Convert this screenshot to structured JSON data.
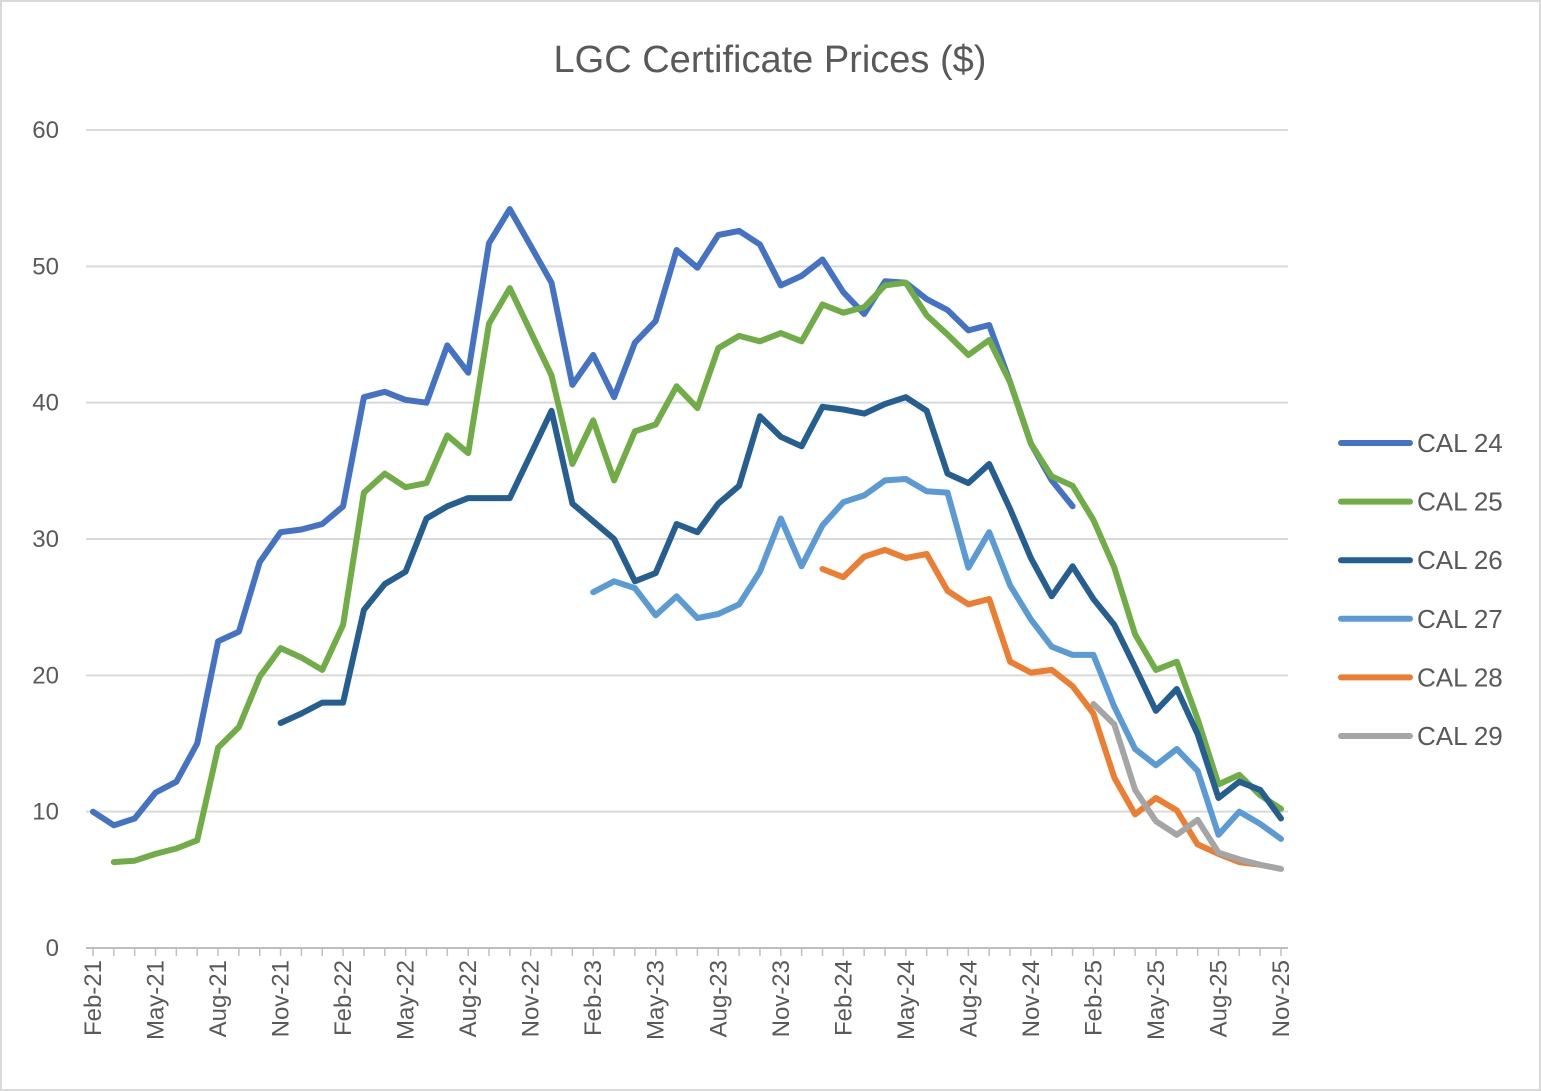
{
  "chart_data": {
    "type": "line",
    "title": "LGC Certificate Prices ($)",
    "xlabel": "",
    "ylabel": "",
    "ylim": [
      0,
      60
    ],
    "yticks": [
      "0",
      "10",
      "20",
      "30",
      "40",
      "50",
      "60"
    ],
    "grid": true,
    "legend_position": "right",
    "x": [
      "Feb-21",
      "Mar-21",
      "Apr-21",
      "May-21",
      "Jun-21",
      "Jul-21",
      "Aug-21",
      "Sep-21",
      "Oct-21",
      "Nov-21",
      "Dec-21",
      "Jan-22",
      "Feb-22",
      "Mar-22",
      "Apr-22",
      "May-22",
      "Jun-22",
      "Jul-22",
      "Aug-22",
      "Sep-22",
      "Oct-22",
      "Nov-22",
      "Dec-22",
      "Jan-23",
      "Feb-23",
      "Mar-23",
      "Apr-23",
      "May-23",
      "Jun-23",
      "Jul-23",
      "Aug-23",
      "Sep-23",
      "Oct-23",
      "Nov-23",
      "Dec-23",
      "Jan-24",
      "Feb-24",
      "Mar-24",
      "Apr-24",
      "May-24",
      "Jun-24",
      "Jul-24",
      "Aug-24",
      "Sep-24",
      "Oct-24",
      "Nov-24",
      "Dec-24",
      "Jan-25",
      "Feb-25",
      "Mar-25",
      "Apr-25",
      "May-25",
      "Jun-25",
      "Jul-25",
      "Aug-25",
      "Sep-25",
      "Oct-25",
      "Nov-25"
    ],
    "x_tick_labels": [
      "Feb-21",
      "May-21",
      "Aug-21",
      "Nov-21",
      "Feb-22",
      "May-22",
      "Aug-22",
      "Nov-22",
      "Feb-23",
      "May-23",
      "Aug-23",
      "Nov-23",
      "Feb-24",
      "May-24",
      "Aug-24",
      "Nov-24",
      "Feb-25",
      "May-25",
      "Aug-25",
      "Nov-25"
    ],
    "series": [
      {
        "name": "CAL 24",
        "color": "#4472c4",
        "values": [
          10.0,
          9.0,
          9.5,
          11.4,
          12.2,
          15.0,
          22.5,
          23.2,
          28.3,
          30.5,
          30.7,
          31.1,
          32.4,
          40.4,
          40.8,
          40.2,
          40.0,
          44.2,
          42.2,
          51.7,
          54.2,
          51.5,
          48.8,
          41.3,
          43.5,
          40.4,
          44.4,
          46.0,
          51.2,
          49.9,
          52.3,
          52.6,
          51.6,
          48.6,
          49.3,
          50.5,
          48.1,
          46.5,
          48.9,
          48.8,
          47.6,
          46.8,
          45.3,
          45.7,
          41.5,
          37.0,
          34.3,
          32.4,
          null,
          null,
          null,
          null,
          null,
          null,
          null,
          null,
          null,
          null
        ]
      },
      {
        "name": "CAL 25",
        "color": "#70ad47",
        "values": [
          null,
          6.3,
          6.4,
          6.9,
          7.3,
          7.9,
          14.7,
          16.2,
          19.9,
          22.0,
          21.3,
          20.4,
          23.7,
          33.4,
          34.8,
          33.8,
          34.1,
          37.6,
          36.3,
          45.8,
          48.4,
          45.2,
          42.0,
          35.5,
          38.7,
          34.3,
          37.9,
          38.4,
          41.2,
          39.6,
          44.0,
          44.9,
          44.5,
          45.1,
          44.5,
          47.2,
          46.6,
          47.0,
          48.6,
          48.8,
          46.4,
          45.0,
          43.5,
          44.6,
          41.5,
          37.0,
          34.6,
          33.9,
          31.4,
          27.9,
          23.0,
          20.4,
          21.0,
          16.8,
          12.0,
          12.7,
          11.2,
          10.2
        ]
      },
      {
        "name": "CAL 26",
        "color": "#255e91",
        "values": [
          null,
          null,
          null,
          null,
          null,
          null,
          null,
          null,
          null,
          16.5,
          17.2,
          18.0,
          18.0,
          24.8,
          26.7,
          27.6,
          31.5,
          32.4,
          33.0,
          33.0,
          33.0,
          36.2,
          39.4,
          32.6,
          31.3,
          30.0,
          26.9,
          27.5,
          31.1,
          30.5,
          32.6,
          33.9,
          39.0,
          37.5,
          36.8,
          39.7,
          39.5,
          39.2,
          39.9,
          40.4,
          39.4,
          34.8,
          34.1,
          35.5,
          32.2,
          28.6,
          25.8,
          28.0,
          25.6,
          23.7,
          20.6,
          17.4,
          19.0,
          15.7,
          11.0,
          12.2,
          11.6,
          9.5
        ]
      },
      {
        "name": "CAL 27",
        "color": "#5b9bd5",
        "values": [
          null,
          null,
          null,
          null,
          null,
          null,
          null,
          null,
          null,
          null,
          null,
          null,
          null,
          null,
          null,
          null,
          null,
          null,
          null,
          null,
          null,
          null,
          null,
          null,
          26.1,
          26.9,
          26.4,
          24.4,
          25.8,
          24.2,
          24.5,
          25.2,
          27.6,
          31.5,
          28.0,
          31.0,
          32.7,
          33.2,
          34.3,
          34.4,
          33.5,
          33.4,
          27.9,
          30.5,
          26.6,
          24.1,
          22.1,
          21.5,
          21.5,
          17.7,
          14.6,
          13.4,
          14.6,
          13.0,
          8.3,
          10.0,
          9.1,
          8.0
        ]
      },
      {
        "name": "CAL 28",
        "color": "#ed7d31",
        "values": [
          null,
          null,
          null,
          null,
          null,
          null,
          null,
          null,
          null,
          null,
          null,
          null,
          null,
          null,
          null,
          null,
          null,
          null,
          null,
          null,
          null,
          null,
          null,
          null,
          null,
          null,
          null,
          null,
          null,
          null,
          null,
          null,
          null,
          null,
          null,
          27.8,
          27.2,
          28.7,
          29.2,
          28.6,
          28.9,
          26.2,
          25.2,
          25.6,
          21.0,
          20.2,
          20.4,
          19.2,
          17.2,
          12.5,
          9.8,
          11.0,
          10.1,
          7.6,
          6.9,
          6.3,
          6.1,
          null
        ]
      },
      {
        "name": "CAL 29",
        "color": "#a5a5a5",
        "values": [
          null,
          null,
          null,
          null,
          null,
          null,
          null,
          null,
          null,
          null,
          null,
          null,
          null,
          null,
          null,
          null,
          null,
          null,
          null,
          null,
          null,
          null,
          null,
          null,
          null,
          null,
          null,
          null,
          null,
          null,
          null,
          null,
          null,
          null,
          null,
          null,
          null,
          null,
          null,
          null,
          null,
          null,
          null,
          null,
          null,
          null,
          null,
          null,
          17.9,
          16.4,
          11.6,
          9.3,
          8.3,
          9.4,
          7.0,
          6.5,
          6.1,
          5.8
        ]
      }
    ]
  },
  "colors": {
    "grid": "#d9d9d9",
    "axis": "#bfbfbf",
    "text": "#595959"
  }
}
